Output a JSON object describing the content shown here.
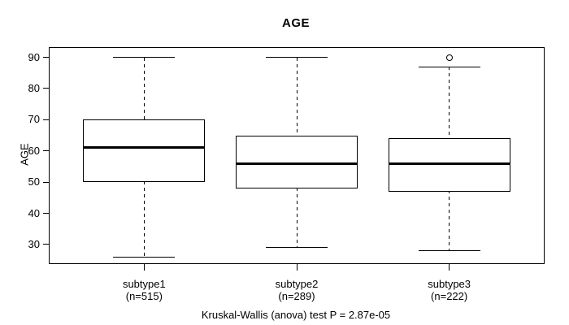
{
  "chart_data": {
    "type": "boxplot",
    "title": "AGE",
    "ylabel": "AGE",
    "caption": "Kruskal-Wallis (anova) test P = 2.87e-05",
    "yticks": [
      30,
      40,
      50,
      60,
      70,
      80,
      90
    ],
    "ylim": [
      24,
      93
    ],
    "xlim": [
      0.38,
      3.62
    ],
    "positions": [
      1,
      2,
      3
    ],
    "grid": false,
    "legend": "none",
    "colors": {
      "line": "#000000",
      "fill": "#ffffff",
      "background": "#ffffff"
    },
    "groups": [
      {
        "label": "subtype1",
        "sublabel": "(n=515)",
        "n": 515,
        "whisker_low": 26,
        "q1": 50,
        "median": 61,
        "q3": 70,
        "whisker_high": 90,
        "outliers": []
      },
      {
        "label": "subtype2",
        "sublabel": "(n=289)",
        "n": 289,
        "whisker_low": 29,
        "q1": 48,
        "median": 56,
        "q3": 65,
        "whisker_high": 90,
        "outliers": []
      },
      {
        "label": "subtype3",
        "sublabel": "(n=222)",
        "n": 222,
        "whisker_low": 28,
        "q1": 47,
        "median": 56,
        "q3": 64,
        "whisker_high": 87,
        "outliers": [
          90
        ]
      }
    ]
  }
}
